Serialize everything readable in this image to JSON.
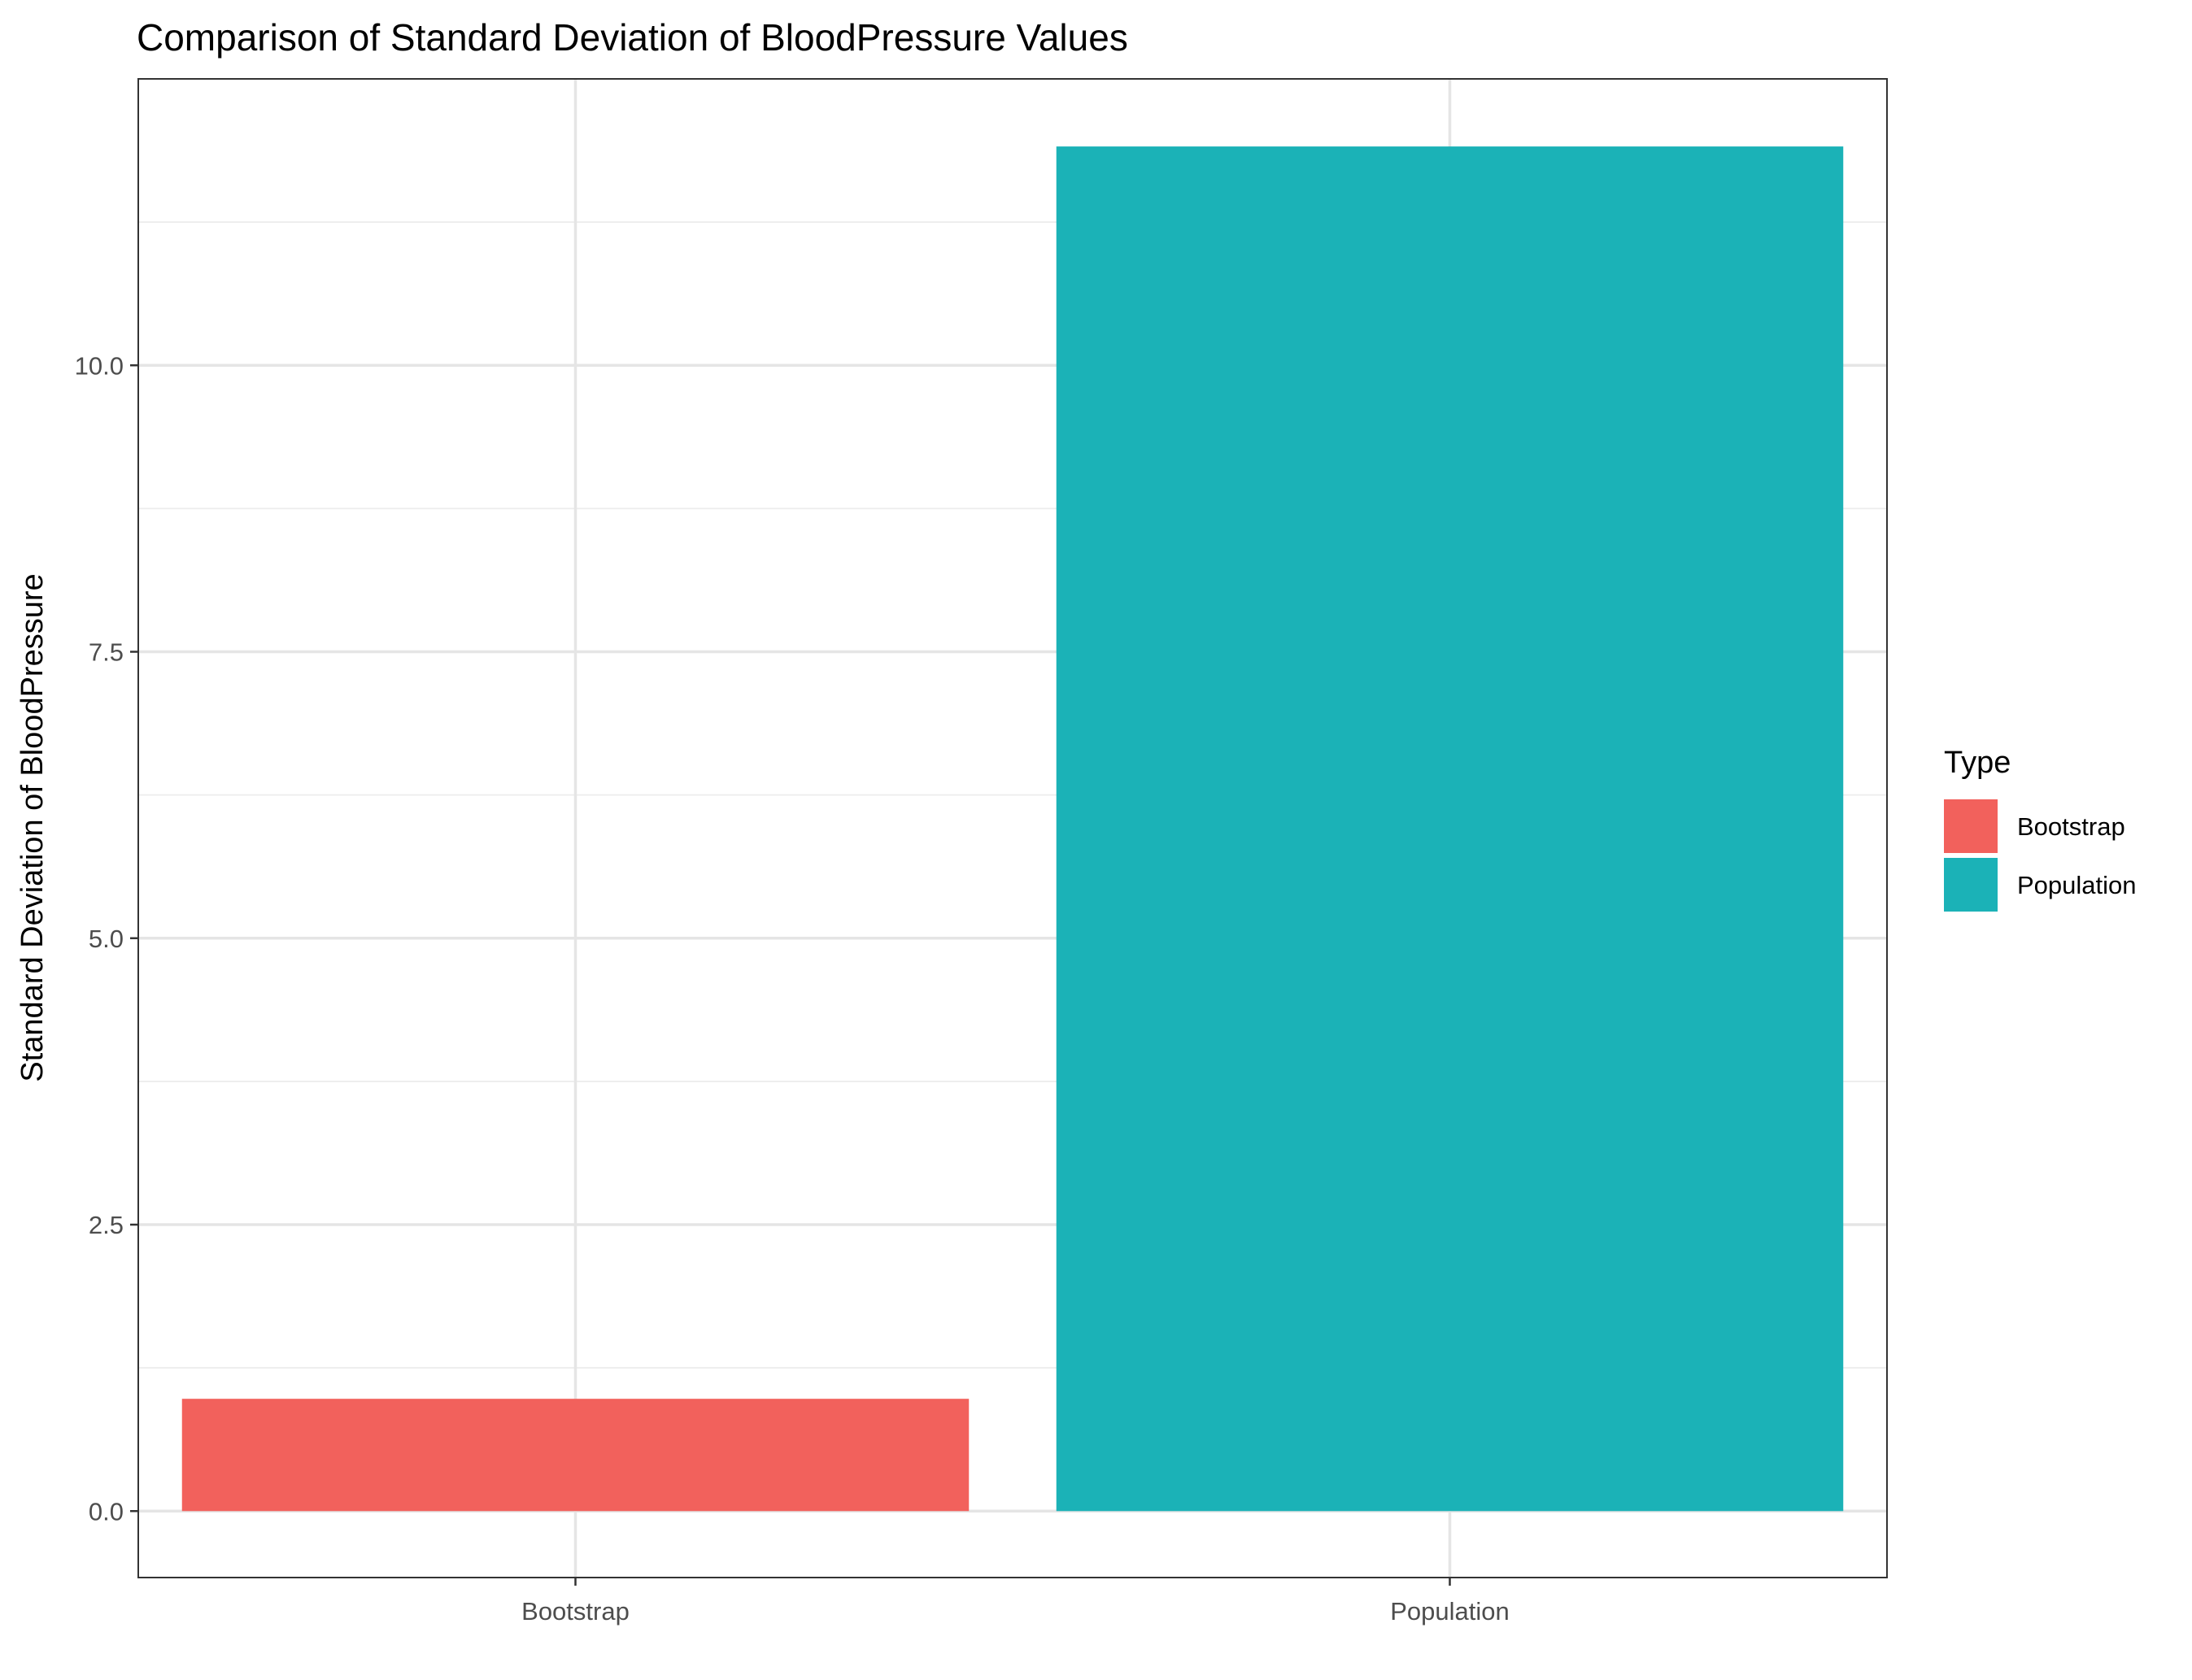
{
  "chart_data": {
    "type": "bar",
    "title": "Comparison of Standard Deviation of BloodPressure Values",
    "xlabel": "",
    "ylabel": "Standard Deviation of BloodPressure",
    "categories": [
      "Bootstrap",
      "Population"
    ],
    "values": [
      0.98,
      11.91
    ],
    "colors": [
      "#F2615C",
      "#1BB2B7"
    ],
    "ylim": [
      -0.58,
      12.5
    ],
    "yticks": [
      0.0,
      2.5,
      5.0,
      7.5,
      10.0
    ],
    "ytick_labels": [
      "0.0",
      "2.5",
      "5.0",
      "7.5",
      "10.0"
    ],
    "grid": true,
    "legend": {
      "title": "Type",
      "position": "right",
      "entries": [
        {
          "label": "Bootstrap",
          "color": "#F2615C"
        },
        {
          "label": "Population",
          "color": "#1BB2B7"
        }
      ]
    }
  }
}
